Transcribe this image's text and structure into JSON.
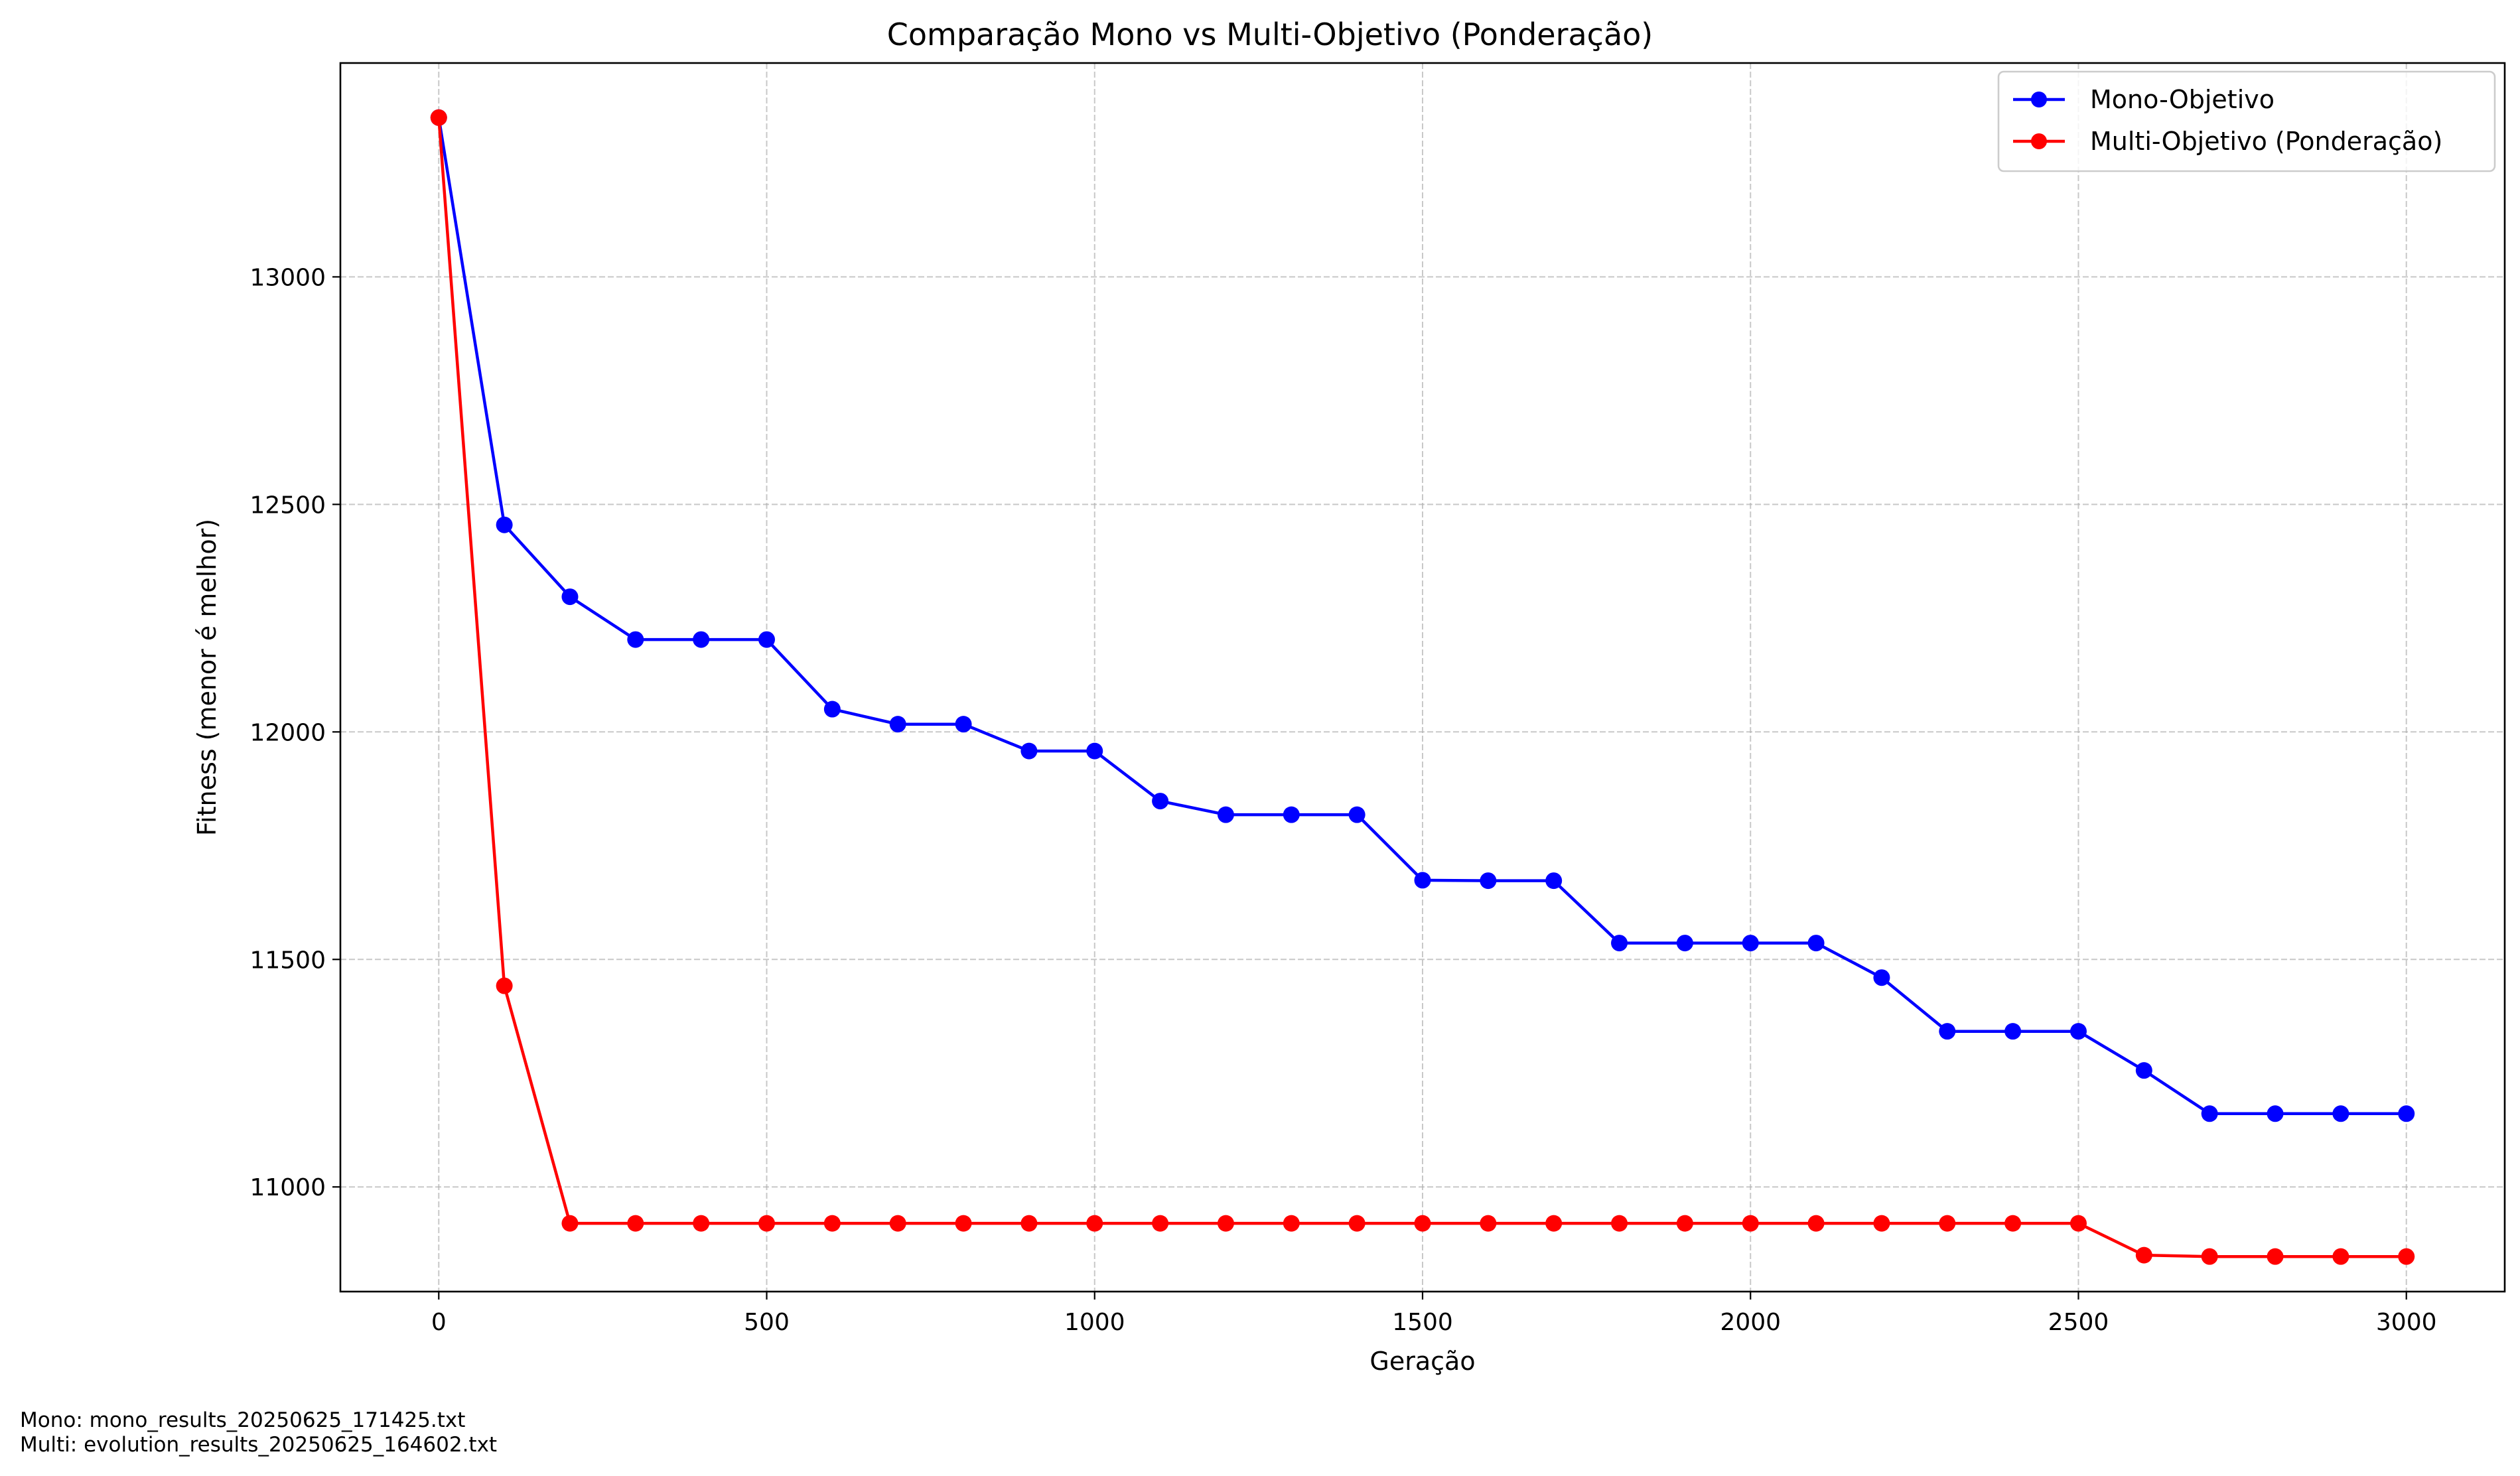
{
  "chart_data": {
    "type": "line",
    "title": "Comparação Mono vs Multi-Objetivo (Ponderação)",
    "xlabel": "Geração",
    "ylabel": "Fitness (menor é melhor)",
    "xlim": [
      -150,
      3150
    ],
    "ylim": [
      10770,
      13470
    ],
    "xticks": [
      0,
      500,
      1000,
      1500,
      2000,
      2500,
      3000
    ],
    "yticks": [
      11000,
      11500,
      12000,
      12500,
      13000
    ],
    "grid": true,
    "legend_position": "top-right",
    "x": [
      0,
      100,
      200,
      300,
      400,
      500,
      600,
      700,
      800,
      900,
      1000,
      1100,
      1200,
      1300,
      1400,
      1500,
      1600,
      1700,
      1800,
      1900,
      2000,
      2100,
      2200,
      2300,
      2400,
      2500,
      2600,
      2700,
      2800,
      2900,
      3000
    ],
    "series": [
      {
        "name": "Mono-Objetivo",
        "color": "#0000ff",
        "values": [
          13350,
          12455,
          12297,
          12203,
          12203,
          12203,
          12050,
          12017,
          12017,
          11958,
          11958,
          11848,
          11818,
          11818,
          11818,
          11674,
          11673,
          11673,
          11536,
          11536,
          11536,
          11536,
          11460,
          11342,
          11342,
          11342,
          11256,
          11161,
          11161,
          11161,
          11161
        ]
      },
      {
        "name": "Multi-Objetivo (Ponderação)",
        "color": "#ff0000",
        "values": [
          13350,
          11442,
          10920,
          10920,
          10920,
          10920,
          10920,
          10920,
          10920,
          10920,
          10920,
          10920,
          10920,
          10920,
          10920,
          10920,
          10920,
          10920,
          10920,
          10920,
          10920,
          10920,
          10920,
          10920,
          10920,
          10920,
          10850,
          10847,
          10847,
          10847,
          10847
        ]
      }
    ],
    "annotations": [
      "Mono: mono_results_20250625_171425.txt",
      "Multi: evolution_results_20250625_164602.txt"
    ]
  }
}
